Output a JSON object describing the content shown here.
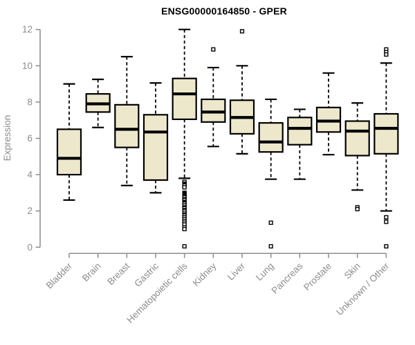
{
  "title": "ENSG00000164850 - GPER",
  "colors": {
    "background": "#ffffff",
    "box_fill": "#ede8cc",
    "box_stroke": "#000000",
    "median": "#000000",
    "whisker": "#000000",
    "outlier_stroke": "#000000",
    "outlier_fill": "#ffffff",
    "axis": "#8c8c8c",
    "tick_label": "#8c8c8c",
    "axis_label": "#8c8c8c",
    "title": "#000000"
  },
  "chart_data": {
    "type": "boxplot",
    "title": "ENSG00000164850 - GPER",
    "xlabel": "",
    "ylabel": "Expression",
    "ylim": [
      0,
      12
    ],
    "yticks": [
      0,
      2,
      4,
      6,
      8,
      10,
      12
    ],
    "grid": false,
    "legend": "none",
    "categories": [
      "Bladder",
      "Brain",
      "Breast",
      "Gastric",
      "Hematopoietic cells",
      "Kidney",
      "Liver",
      "Lung",
      "Pancreas",
      "Prostate",
      "Skin",
      "Unknown / Other"
    ],
    "series": [
      {
        "name": "Bladder",
        "whisker_low": 2.6,
        "q1": 4.0,
        "median": 4.9,
        "q3": 6.5,
        "whisker_high": 9.0,
        "outliers": []
      },
      {
        "name": "Brain",
        "whisker_low": 6.6,
        "q1": 7.45,
        "median": 7.9,
        "q3": 8.45,
        "whisker_high": 9.25,
        "outliers": []
      },
      {
        "name": "Breast",
        "whisker_low": 3.4,
        "q1": 5.5,
        "median": 6.5,
        "q3": 7.85,
        "whisker_high": 10.5,
        "outliers": []
      },
      {
        "name": "Gastric",
        "whisker_low": 3.0,
        "q1": 3.7,
        "median": 6.35,
        "q3": 7.3,
        "whisker_high": 9.05,
        "outliers": []
      },
      {
        "name": "Hematopoietic cells",
        "whisker_low": 3.8,
        "q1": 7.05,
        "median": 8.45,
        "q3": 9.3,
        "whisker_high": 12.0,
        "outliers": [
          3.6,
          3.5,
          3.45,
          3.4,
          3.3,
          3.0,
          2.95,
          2.9,
          2.85,
          2.8,
          2.75,
          2.65,
          2.6,
          2.5,
          2.45,
          2.4,
          2.3,
          2.2,
          2.15,
          2.05,
          2.0,
          1.9,
          1.8,
          1.75,
          1.65,
          1.55,
          1.45,
          1.35,
          1.25,
          1.1,
          1.0,
          0.05
        ]
      },
      {
        "name": "Kidney",
        "whisker_low": 5.55,
        "q1": 6.9,
        "median": 7.45,
        "q3": 8.15,
        "whisker_high": 9.9,
        "outliers": [
          10.9
        ]
      },
      {
        "name": "Liver",
        "whisker_low": 5.15,
        "q1": 6.25,
        "median": 7.15,
        "q3": 8.1,
        "whisker_high": 10.0,
        "outliers": [
          11.9
        ]
      },
      {
        "name": "Lung",
        "whisker_low": 3.75,
        "q1": 5.25,
        "median": 5.8,
        "q3": 6.85,
        "whisker_high": 8.15,
        "outliers": [
          1.35,
          0.05
        ]
      },
      {
        "name": "Pancreas",
        "whisker_low": 3.75,
        "q1": 5.65,
        "median": 6.55,
        "q3": 7.15,
        "whisker_high": 7.6,
        "outliers": []
      },
      {
        "name": "Prostate",
        "whisker_low": 5.1,
        "q1": 6.35,
        "median": 6.95,
        "q3": 7.7,
        "whisker_high": 9.6,
        "outliers": []
      },
      {
        "name": "Skin",
        "whisker_low": 3.15,
        "q1": 5.05,
        "median": 6.4,
        "q3": 6.95,
        "whisker_high": 7.95,
        "outliers": [
          2.2,
          2.1
        ]
      },
      {
        "name": "Unknown / Other",
        "whisker_low": 2.0,
        "q1": 5.15,
        "median": 6.55,
        "q3": 7.35,
        "whisker_high": 10.15,
        "outliers": [
          10.9,
          10.75,
          10.62,
          1.65,
          1.4,
          0.05
        ]
      }
    ]
  }
}
